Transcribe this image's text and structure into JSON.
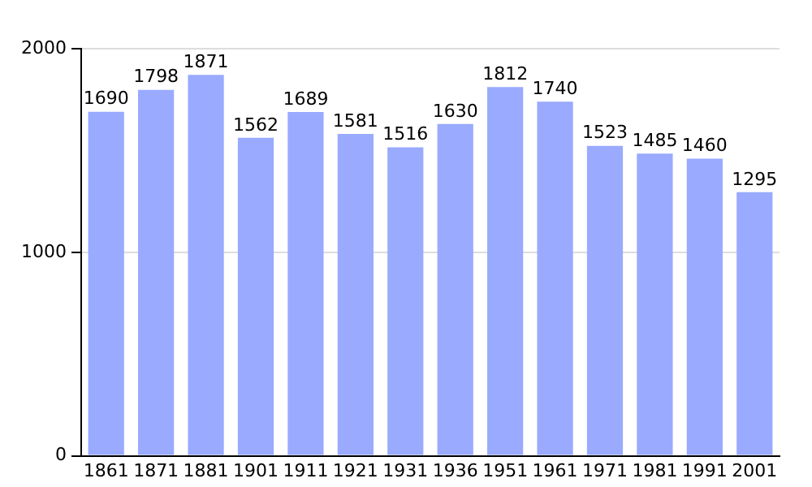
{
  "chart_data": {
    "type": "bar",
    "categories": [
      "1861",
      "1871",
      "1881",
      "1901",
      "1911",
      "1921",
      "1931",
      "1936",
      "1951",
      "1961",
      "1971",
      "1981",
      "1991",
      "2001"
    ],
    "values": [
      1690,
      1798,
      1871,
      1562,
      1689,
      1581,
      1516,
      1630,
      1812,
      1740,
      1523,
      1485,
      1460,
      1295
    ],
    "color": "#99aaff",
    "ylim": [
      0,
      2000
    ],
    "yticks": [
      0,
      1000,
      2000
    ],
    "grid": "y",
    "data_labels": true
  }
}
